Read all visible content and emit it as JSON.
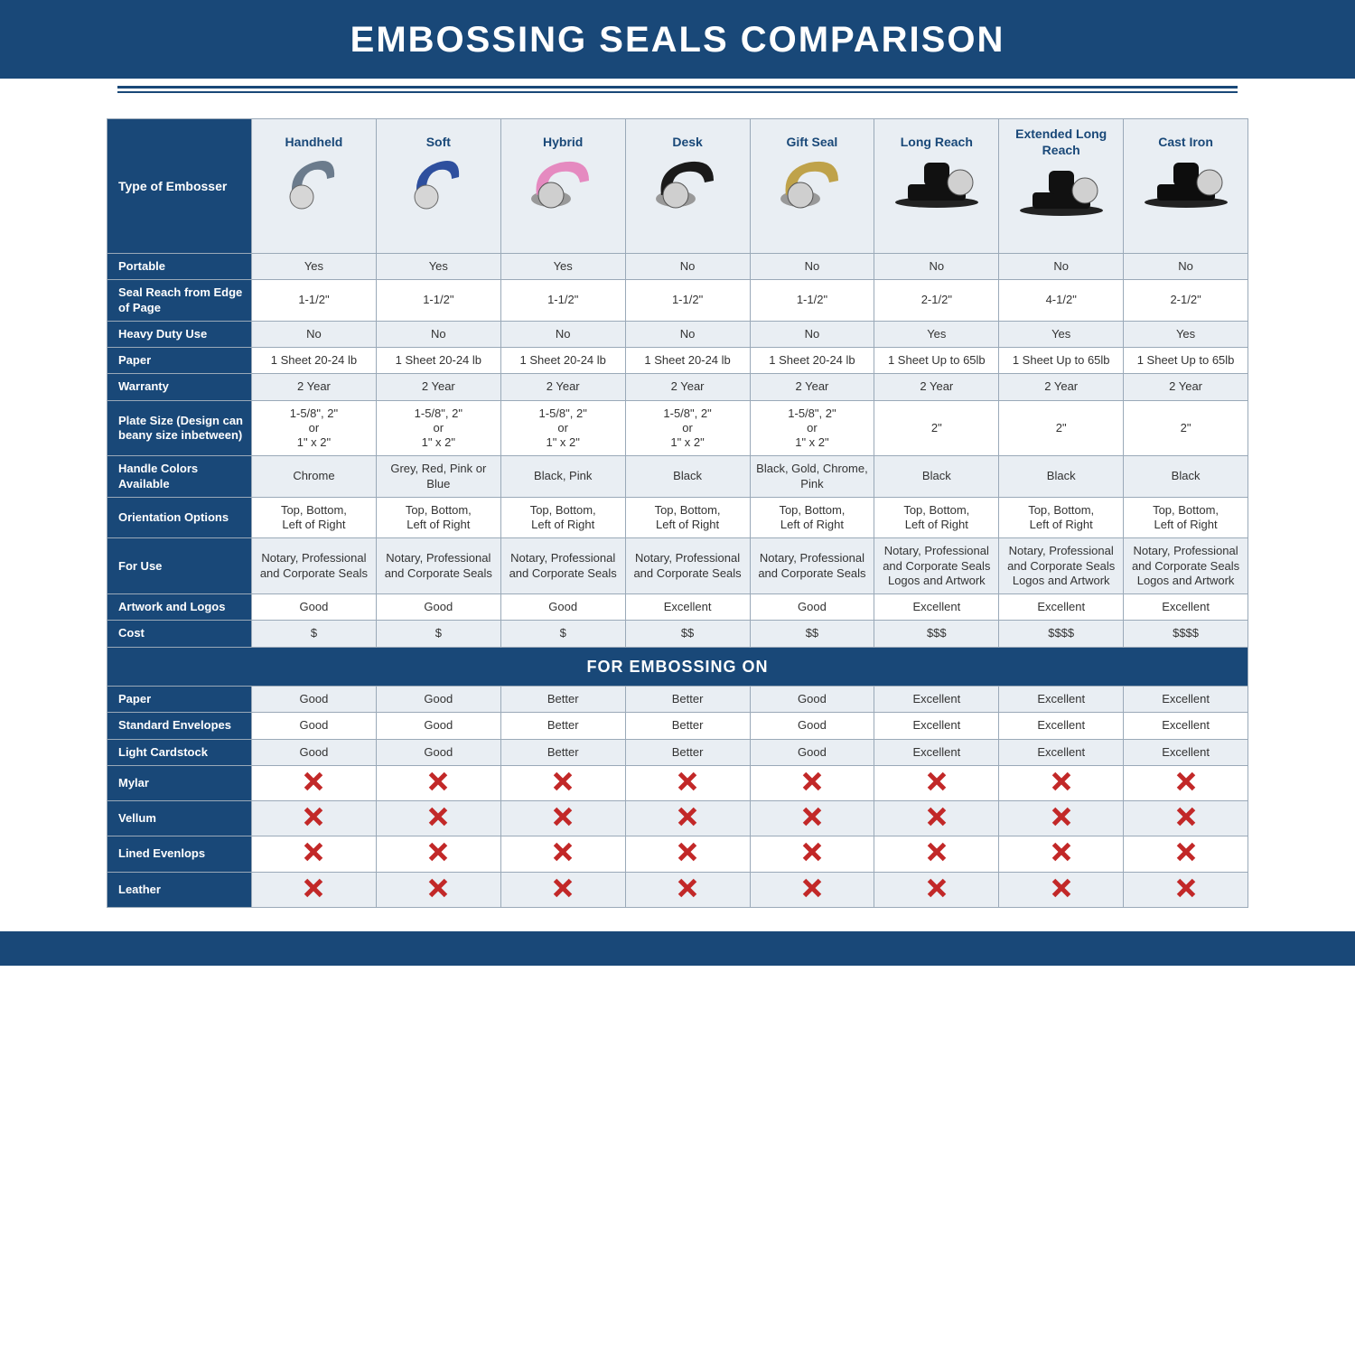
{
  "title": "EMBOSSING SEALS COMPARISON",
  "colors": {
    "brand": "#194878",
    "row_alt": "#e9eef3",
    "x_red": "#c22828",
    "border": "#9aa9b8",
    "text": "#333333",
    "white": "#ffffff"
  },
  "columns": [
    {
      "id": "handheld",
      "label": "Handheld",
      "icon_color": "#6b7b8c"
    },
    {
      "id": "soft",
      "label": "Soft",
      "icon_color": "#2e4f9e"
    },
    {
      "id": "hybrid",
      "label": "Hybrid",
      "icon_color": "#e58ac0"
    },
    {
      "id": "desk",
      "label": "Desk",
      "icon_color": "#1a1a1a"
    },
    {
      "id": "gift",
      "label": "Gift Seal",
      "icon_color": "#bfa24a"
    },
    {
      "id": "longreach",
      "label": "Long Reach",
      "icon_color": "#111111"
    },
    {
      "id": "extlong",
      "label": "Extended Long Reach",
      "icon_color": "#111111"
    },
    {
      "id": "castiron",
      "label": "Cast Iron",
      "icon_color": "#0d0d0d"
    }
  ],
  "row_header_label": "Type of Embosser",
  "rows": [
    {
      "label": "Portable",
      "stripe": "a",
      "cells": [
        "Yes",
        "Yes",
        "Yes",
        "No",
        "No",
        "No",
        "No",
        "No"
      ]
    },
    {
      "label": "Seal Reach from Edge of Page",
      "stripe": "b",
      "cells": [
        "1-1/2\"",
        "1-1/2\"",
        "1-1/2\"",
        "1-1/2\"",
        "1-1/2\"",
        "2-1/2\"",
        "4-1/2\"",
        "2-1/2\""
      ]
    },
    {
      "label": "Heavy Duty Use",
      "stripe": "a",
      "cells": [
        "No",
        "No",
        "No",
        "No",
        "No",
        "Yes",
        "Yes",
        "Yes"
      ]
    },
    {
      "label": "Paper",
      "stripe": "b",
      "cells": [
        "1 Sheet 20-24 lb",
        "1 Sheet 20-24 lb",
        "1 Sheet 20-24 lb",
        "1 Sheet 20-24 lb",
        "1 Sheet 20-24 lb",
        "1 Sheet Up to 65lb",
        "1 Sheet Up to 65lb",
        "1 Sheet Up to 65lb"
      ]
    },
    {
      "label": "Warranty",
      "stripe": "a",
      "cells": [
        "2 Year",
        "2 Year",
        "2 Year",
        "2 Year",
        "2 Year",
        "2 Year",
        "2 Year",
        "2 Year"
      ]
    },
    {
      "label": "Plate Size (Design can beany size inbetween)",
      "stripe": "b",
      "cells": [
        "1-5/8\", 2\"\nor\n1\" x 2\"",
        "1-5/8\", 2\"\nor\n1\" x 2\"",
        "1-5/8\", 2\"\nor\n1\" x 2\"",
        "1-5/8\", 2\"\nor\n1\" x 2\"",
        "1-5/8\", 2\"\nor\n1\" x 2\"",
        "2\"",
        "2\"",
        "2\""
      ]
    },
    {
      "label": "Handle Colors Available",
      "stripe": "a",
      "cells": [
        "Chrome",
        "Grey, Red, Pink or Blue",
        "Black, Pink",
        "Black",
        "Black, Gold, Chrome, Pink",
        "Black",
        "Black",
        "Black"
      ]
    },
    {
      "label": "Orientation Options",
      "stripe": "b",
      "cells": [
        "Top, Bottom,\nLeft of Right",
        "Top, Bottom,\nLeft of Right",
        "Top, Bottom,\nLeft of Right",
        "Top, Bottom,\nLeft of Right",
        "Top, Bottom,\nLeft of Right",
        "Top, Bottom,\nLeft of Right",
        "Top, Bottom,\nLeft of Right",
        "Top, Bottom,\nLeft of Right"
      ]
    },
    {
      "label": "For Use",
      "stripe": "a",
      "cells": [
        "Notary, Professional and Corporate Seals",
        "Notary, Professional and Corporate Seals",
        "Notary, Professional and Corporate Seals",
        "Notary, Professional and Corporate Seals",
        "Notary, Professional and Corporate Seals",
        "Notary, Professional and Corporate Seals Logos and Artwork",
        "Notary, Professional and Corporate Seals Logos and Artwork",
        "Notary, Professional and Corporate Seals Logos and Artwork"
      ]
    },
    {
      "label": "Artwork and Logos",
      "stripe": "b",
      "cells": [
        "Good",
        "Good",
        "Good",
        "Excellent",
        "Good",
        "Excellent",
        "Excellent",
        "Excellent"
      ]
    },
    {
      "label": "Cost",
      "stripe": "a",
      "cells": [
        "$",
        "$",
        "$",
        "$$",
        "$$",
        "$$$",
        "$$$$",
        "$$$$"
      ]
    }
  ],
  "section_label": "FOR EMBOSSING ON",
  "rows2": [
    {
      "label": "Paper",
      "stripe": "a",
      "cells": [
        "Good",
        "Good",
        "Better",
        "Better",
        "Good",
        "Excellent",
        "Excellent",
        "Excellent"
      ]
    },
    {
      "label": "Standard Envelopes",
      "stripe": "b",
      "cells": [
        "Good",
        "Good",
        "Better",
        "Better",
        "Good",
        "Excellent",
        "Excellent",
        "Excellent"
      ]
    },
    {
      "label": "Light Cardstock",
      "stripe": "a",
      "cells": [
        "Good",
        "Good",
        "Better",
        "Better",
        "Good",
        "Excellent",
        "Excellent",
        "Excellent"
      ]
    },
    {
      "label": "Mylar",
      "stripe": "b",
      "cells": [
        "X",
        "X",
        "X",
        "X",
        "X",
        "X",
        "X",
        "X"
      ]
    },
    {
      "label": "Vellum",
      "stripe": "a",
      "cells": [
        "X",
        "X",
        "X",
        "X",
        "X",
        "X",
        "X",
        "X"
      ]
    },
    {
      "label": "Lined Evenlops",
      "stripe": "b",
      "cells": [
        "X",
        "X",
        "X",
        "X",
        "X",
        "X",
        "X",
        "X"
      ]
    },
    {
      "label": "Leather",
      "stripe": "a",
      "cells": [
        "X",
        "X",
        "X",
        "X",
        "X",
        "X",
        "X",
        "X"
      ]
    }
  ]
}
